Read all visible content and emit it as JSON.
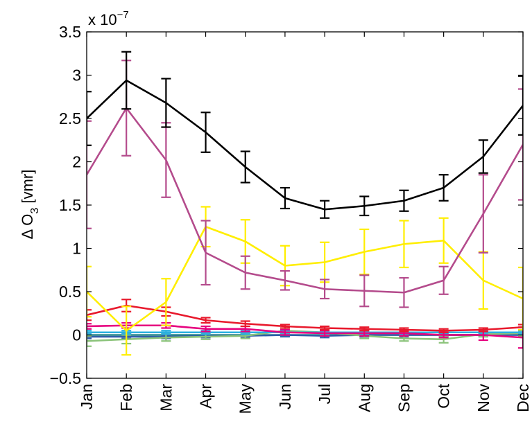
{
  "chart_data": {
    "type": "line",
    "title": "",
    "xlabel": "",
    "ylabel": "Δ O",
    "ylabel_subscript": "3",
    "ylabel_unit": " [vmr]",
    "exponent_label": "x 10",
    "exponent_power": "−7",
    "ylim": [
      -0.5,
      3.5
    ],
    "yticks": [
      -0.5,
      0,
      0.5,
      1,
      1.5,
      2,
      2.5,
      3,
      3.5
    ],
    "ytick_labels": [
      "−0.5",
      "0",
      "0.5",
      "1",
      "1.5",
      "2",
      "2.5",
      "3",
      "3.5"
    ],
    "categories": [
      "Jan",
      "Feb",
      "Mar",
      "Apr",
      "May",
      "Jun",
      "Jul",
      "Aug",
      "Sep",
      "Oct",
      "Nov",
      "Dec"
    ],
    "grid": false,
    "legend": "none",
    "series": [
      {
        "color": "#000000",
        "values": [
          2.5,
          2.94,
          2.68,
          2.34,
          1.94,
          1.58,
          1.45,
          1.49,
          1.55,
          1.7,
          2.06,
          2.65
        ],
        "err": [
          0.31,
          0.33,
          0.28,
          0.23,
          0.18,
          0.12,
          0.1,
          0.11,
          0.12,
          0.15,
          0.19,
          0.34
        ]
      },
      {
        "color": "#b44b8c",
        "values": [
          1.85,
          2.62,
          2.02,
          0.95,
          0.72,
          0.63,
          0.53,
          0.51,
          0.49,
          0.63,
          1.4,
          2.2
        ],
        "err": [
          0.62,
          0.55,
          0.43,
          0.37,
          0.19,
          0.11,
          0.11,
          0.18,
          0.17,
          0.16,
          0.45,
          0.64
        ]
      },
      {
        "color": "#ffee00",
        "values": [
          0.5,
          0.05,
          0.38,
          1.25,
          1.08,
          0.8,
          0.84,
          0.96,
          1.05,
          1.09,
          0.63,
          0.42
        ],
        "err": [
          0.29,
          0.28,
          0.27,
          0.23,
          0.25,
          0.23,
          0.23,
          0.26,
          0.27,
          0.26,
          0.33,
          0.36
        ]
      },
      {
        "color": "#e8192c",
        "values": [
          0.23,
          0.34,
          0.27,
          0.17,
          0.13,
          0.1,
          0.08,
          0.07,
          0.06,
          0.05,
          0.06,
          0.09
        ],
        "err": [
          0.06,
          0.07,
          0.05,
          0.03,
          0.03,
          0.02,
          0.02,
          0.02,
          0.02,
          0.02,
          0.02,
          0.03
        ]
      },
      {
        "color": "#e6007e",
        "values": [
          0.1,
          0.11,
          0.11,
          0.07,
          0.07,
          0.03,
          0.02,
          0.02,
          0.02,
          0.0,
          0.0,
          -0.03
        ],
        "err": [
          0.03,
          0.03,
          0.03,
          0.03,
          0.03,
          0.03,
          0.03,
          0.03,
          0.03,
          0.03,
          0.06,
          0.12
        ]
      },
      {
        "color": "#2ab0e0",
        "values": [
          0.03,
          0.03,
          0.03,
          0.03,
          0.03,
          0.03,
          0.03,
          0.03,
          0.03,
          0.03,
          0.03,
          0.03
        ],
        "err": [
          0.02,
          0.02,
          0.02,
          0.02,
          0.02,
          0.02,
          0.02,
          0.02,
          0.02,
          0.02,
          0.02,
          0.02
        ]
      },
      {
        "color": "#8bc37a",
        "values": [
          -0.07,
          -0.05,
          -0.03,
          -0.02,
          -0.01,
          0.05,
          0.03,
          -0.01,
          -0.04,
          -0.05,
          0.01,
          0.02
        ],
        "err": [
          0.06,
          0.05,
          0.04,
          0.03,
          0.03,
          0.03,
          0.03,
          0.03,
          0.03,
          0.04,
          0.03,
          0.03
        ]
      },
      {
        "color": "#2f5da8",
        "values": [
          -0.02,
          -0.02,
          -0.02,
          -0.01,
          -0.01,
          0.0,
          -0.01,
          0.0,
          0.0,
          0.0,
          0.0,
          0.0
        ],
        "err": [
          0.02,
          0.02,
          0.02,
          0.02,
          0.02,
          0.02,
          0.02,
          0.02,
          0.02,
          0.02,
          0.02,
          0.02
        ]
      },
      {
        "color": "#2a8a8a",
        "values": [
          0.0,
          0.0,
          0.0,
          0.0,
          0.0,
          0.0,
          0.0,
          0.0,
          0.0,
          0.0,
          0.0,
          0.0
        ],
        "err": [
          0.01,
          0.01,
          0.01,
          0.01,
          0.01,
          0.01,
          0.01,
          0.01,
          0.01,
          0.01,
          0.01,
          0.01
        ]
      }
    ]
  }
}
